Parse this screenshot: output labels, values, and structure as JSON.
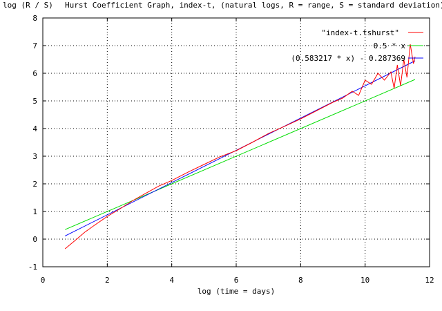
{
  "colors": {
    "background": "#ffffff",
    "axis": "#000000",
    "grid": "#000000",
    "series_1": "#ff0000",
    "series_2": "#00dd00",
    "series_3": "#0000ff"
  },
  "chart_data": {
    "type": "line",
    "title": "Hurst Coefficient Graph, index-t, (natural logs, R = range, S = standard deviation)",
    "ylabel": "log (R / S)",
    "xlabel": "log (time = days)",
    "xlim": [
      0,
      12
    ],
    "ylim": [
      -1,
      8
    ],
    "xticks": [
      "0",
      "2",
      "4",
      "6",
      "8",
      "10",
      "12"
    ],
    "yticks": [
      "-1",
      "0",
      "1",
      "2",
      "3",
      "4",
      "5",
      "6",
      "7",
      "8"
    ],
    "grid": true,
    "legend_position": "top-right",
    "series": [
      {
        "name": "\"index-t.tshurst\"",
        "color": "#ff0000",
        "x": [
          0.69,
          1.0,
          1.3,
          1.6,
          2.0,
          2.4,
          2.8,
          3.2,
          3.6,
          4.0,
          4.5,
          5.0,
          5.5,
          6.0,
          6.5,
          7.0,
          7.5,
          8.0,
          8.5,
          9.0,
          9.3,
          9.6,
          9.8,
          10.0,
          10.2,
          10.4,
          10.6,
          10.8,
          10.9,
          11.0,
          11.1,
          11.2,
          11.3,
          11.4,
          11.5,
          11.55
        ],
        "y": [
          -0.35,
          -0.05,
          0.25,
          0.5,
          0.82,
          1.1,
          1.4,
          1.66,
          1.92,
          2.12,
          2.42,
          2.7,
          2.98,
          3.2,
          3.5,
          3.82,
          4.08,
          4.35,
          4.65,
          4.95,
          5.1,
          5.35,
          5.2,
          5.75,
          5.6,
          6.0,
          5.75,
          6.05,
          5.45,
          6.3,
          5.55,
          6.5,
          5.85,
          7.05,
          6.35,
          6.6
        ]
      },
      {
        "name": "0.5 * x",
        "color": "#00dd00",
        "function": {
          "slope": 0.5,
          "intercept": 0
        },
        "x_range": [
          0.69,
          11.55
        ]
      },
      {
        "name": "(0.583217 * x) - 0.287369",
        "color": "#0000ff",
        "function": {
          "slope": 0.583217,
          "intercept": -0.287369
        },
        "x_range": [
          0.69,
          11.55
        ]
      }
    ]
  }
}
